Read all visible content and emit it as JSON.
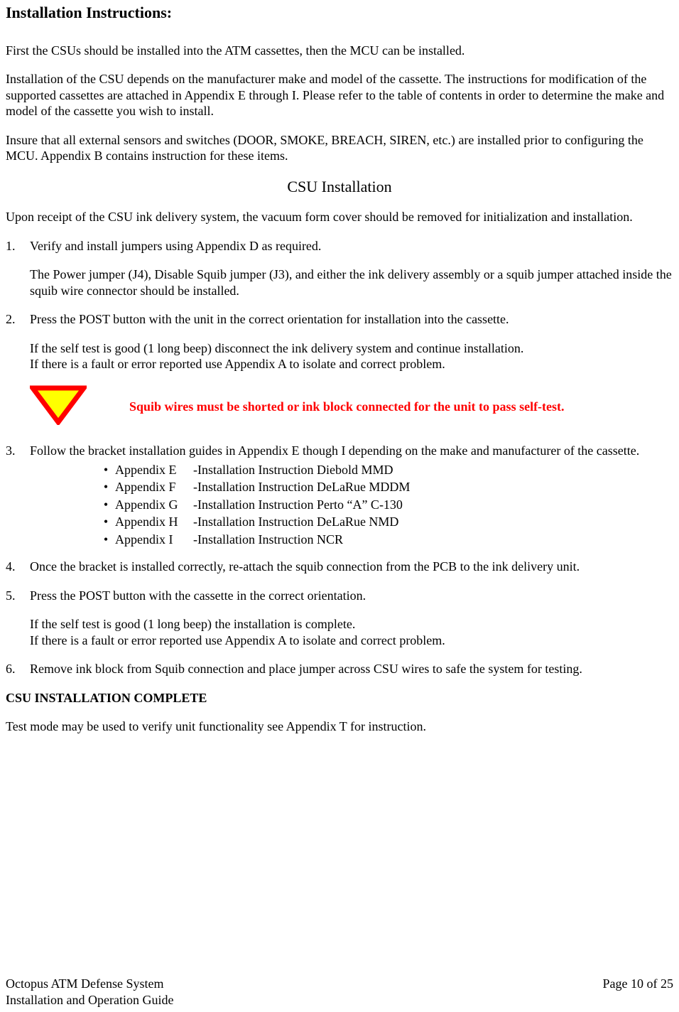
{
  "title": "Installation Instructions:",
  "intro": [
    "First the CSUs should be installed into the ATM cassettes, then the MCU can be installed.",
    "Installation of the CSU depends on the manufacturer make and model of the cassette.  The instructions for modification of the supported cassettes are attached in Appendix E through I.  Please refer to the table of contents in order to determine the make and model of the cassette you wish to install.",
    "Insure that all external sensors and switches (DOOR, SMOKE, BREACH, SIREN, etc.) are installed prior to configuring the MCU.  Appendix B contains instruction for these items."
  ],
  "sub_heading": "CSU Installation",
  "csu_intro": "Upon receipt of the CSU ink delivery system, the vacuum form cover should be removed for initialization and installation.",
  "steps": {
    "1": {
      "num": "1.",
      "main": "Verify and install jumpers using Appendix D as required.",
      "sub": "The Power jumper (J4), Disable Squib jumper (J3), and either the ink delivery assembly or a squib jumper attached inside the squib wire connector should be installed."
    },
    "2": {
      "num": "2.",
      "main": "Press the POST button with the unit in the correct orientation for installation into the cassette.",
      "sub_a": "If the self test is good (1 long beep) disconnect the ink delivery system and continue installation.",
      "sub_b": "If there is a fault or error reported use Appendix A to isolate and correct problem."
    },
    "3": {
      "num": "3.",
      "main": "Follow the bracket installation guides in Appendix E though I depending on the make and manufacturer of the cassette.",
      "bullets": [
        {
          "label": "Appendix E",
          "desc": "-Installation Instruction Diebold MMD"
        },
        {
          "label": "Appendix F",
          "desc": "-Installation Instruction DeLaRue MDDM"
        },
        {
          "label": "Appendix G",
          "desc": "-Installation Instruction Perto “A” C-130"
        },
        {
          "label": "Appendix H",
          "desc": "-Installation Instruction DeLaRue NMD"
        },
        {
          "label": "Appendix I",
          "desc": "-Installation Instruction NCR"
        }
      ]
    },
    "4": {
      "num": "4.",
      "main": "Once the bracket is installed correctly, re-attach the squib connection from the PCB to the ink delivery unit."
    },
    "5": {
      "num": "5.",
      "main": "Press the POST button with the cassette in the correct orientation.",
      "sub_a": "If the self test is good (1 long beep) the installation is complete.",
      "sub_b": "If there is a fault or error reported use Appendix A to isolate and correct problem."
    },
    "6": {
      "num": "6.",
      "main": "Remove ink block from Squib connection and place jumper across CSU wires to safe the system for testing."
    }
  },
  "callout": "Squib wires must be shorted or ink block connected for the unit to pass self-test.",
  "callout_colors": {
    "text": "#ff0000",
    "triangle_border": "#ff0000",
    "triangle_fill": "#ffff00"
  },
  "complete": "CSU INSTALLATION COMPLETE",
  "test_mode": "Test mode may be used to verify unit functionality see Appendix T for instruction.",
  "footer": {
    "left1": "Octopus ATM Defense System",
    "left2": "Installation and Operation Guide",
    "right": "Page 10 of 25"
  }
}
